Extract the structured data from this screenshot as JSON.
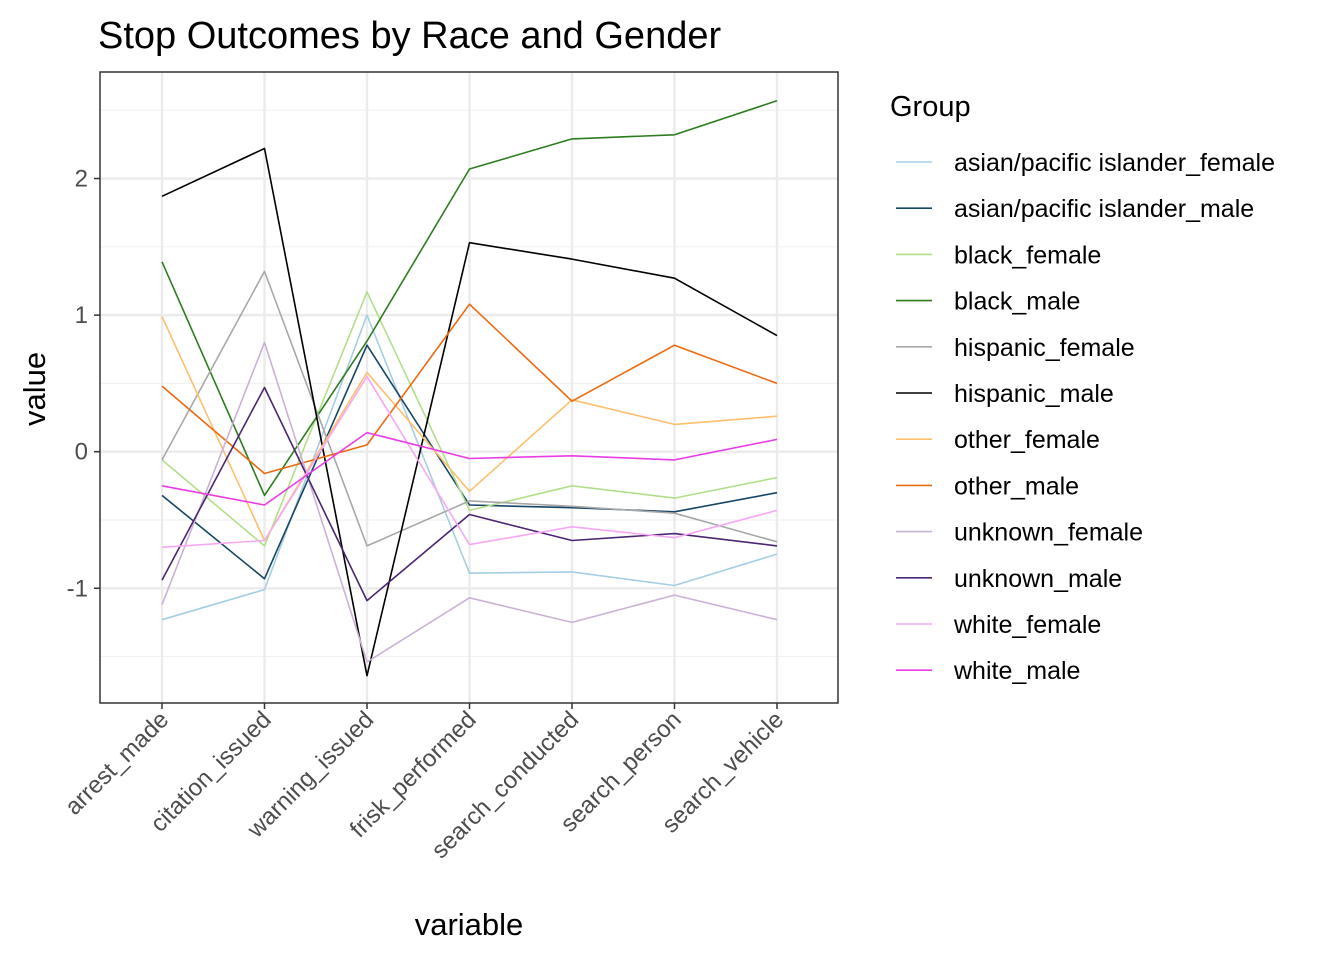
{
  "chart_data": {
    "type": "line",
    "title": "Stop Outcomes by Race and Gender",
    "xlabel": "variable",
    "ylabel": "value",
    "categories": [
      "arrest_made",
      "citation_issued",
      "warning_issued",
      "frisk_performed",
      "search_conducted",
      "search_person",
      "search_vehicle"
    ],
    "y_ticks": [
      -1,
      0,
      1,
      2
    ],
    "ylim": [
      -1.84,
      2.78
    ],
    "grid": true,
    "legend": {
      "title": "Group",
      "position": "right"
    },
    "series": [
      {
        "name": "asian/pacific islander_female",
        "color": "#a6cee3",
        "values": [
          -1.23,
          -1.01,
          1.0,
          -0.89,
          -0.88,
          -0.98,
          -0.75
        ]
      },
      {
        "name": "asian/pacific islander_male",
        "color": "#164666",
        "values": [
          -0.32,
          -0.93,
          0.78,
          -0.39,
          -0.41,
          -0.44,
          -0.3
        ]
      },
      {
        "name": "black_female",
        "color": "#b2df8a",
        "values": [
          -0.06,
          -0.69,
          1.17,
          -0.43,
          -0.25,
          -0.34,
          -0.19
        ]
      },
      {
        "name": "black_male",
        "color": "#2d7d1f",
        "values": [
          1.39,
          -0.32,
          0.81,
          2.07,
          2.29,
          2.32,
          2.57
        ]
      },
      {
        "name": "hispanic_female",
        "color": "#a8a8a8",
        "values": [
          -0.06,
          1.32,
          -0.69,
          -0.36,
          -0.4,
          -0.45,
          -0.66
        ]
      },
      {
        "name": "hispanic_male",
        "color": "#000000",
        "values": [
          1.87,
          2.22,
          -1.64,
          1.53,
          1.41,
          1.27,
          0.85
        ]
      },
      {
        "name": "other_female",
        "color": "#fdbf6f",
        "values": [
          0.99,
          -0.65,
          0.58,
          -0.29,
          0.38,
          0.2,
          0.26
        ]
      },
      {
        "name": "other_male",
        "color": "#ec6a0f",
        "values": [
          0.48,
          -0.16,
          0.05,
          1.08,
          0.37,
          0.78,
          0.5
        ]
      },
      {
        "name": "unknown_female",
        "color": "#cab2d6",
        "values": [
          -1.12,
          0.8,
          -1.54,
          -1.07,
          -1.25,
          -1.05,
          -1.23
        ]
      },
      {
        "name": "unknown_male",
        "color": "#4b2672",
        "values": [
          -0.94,
          0.47,
          -1.09,
          -0.46,
          -0.65,
          -0.6,
          -0.69
        ]
      },
      {
        "name": "white_female",
        "color": "#f7a8f3",
        "values": [
          -0.7,
          -0.65,
          0.55,
          -0.68,
          -0.55,
          -0.63,
          -0.43
        ]
      },
      {
        "name": "white_male",
        "color": "#ea3ce6",
        "values": [
          -0.25,
          -0.39,
          0.14,
          -0.05,
          -0.03,
          -0.06,
          0.09
        ]
      }
    ]
  }
}
